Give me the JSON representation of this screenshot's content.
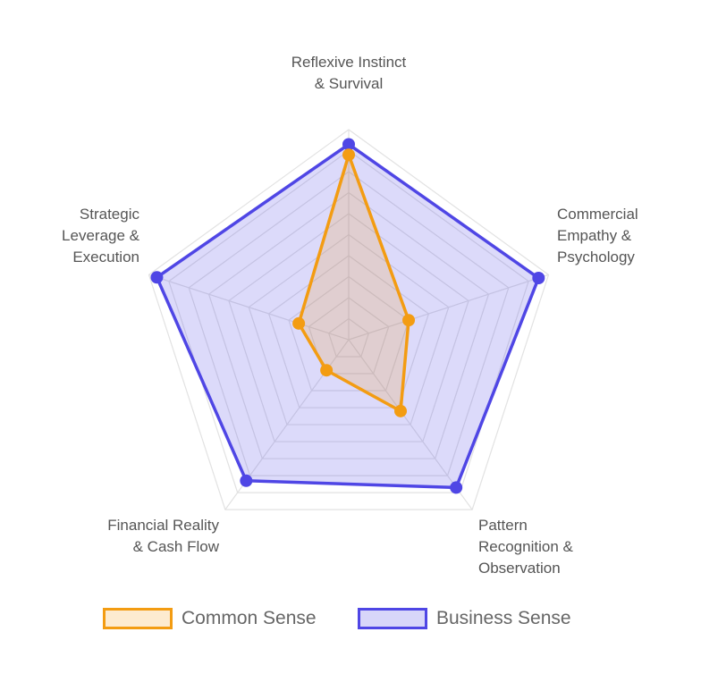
{
  "chart_data": {
    "type": "radar",
    "categories": [
      "Reflexive Instinct & Survival",
      "Commercial Empathy & Psychology",
      "Pattern Recognition & Observation",
      "Financial Reality & Cash Flow",
      "Strategic Leverage & Execution"
    ],
    "series": [
      {
        "name": "Common Sense",
        "color": "#f39c12",
        "fill": "rgba(243,156,18,0.18)",
        "values": [
          88,
          30,
          42,
          18,
          25
        ]
      },
      {
        "name": "Business Sense",
        "color": "#4f46e5",
        "fill": "rgba(79,70,229,0.2)",
        "values": [
          93,
          95,
          87,
          83,
          96
        ]
      }
    ],
    "rlim": [
      0,
      100
    ],
    "rticks": [
      10,
      20,
      30,
      40,
      50,
      60,
      70,
      80,
      90,
      100
    ],
    "grid": true
  }
}
